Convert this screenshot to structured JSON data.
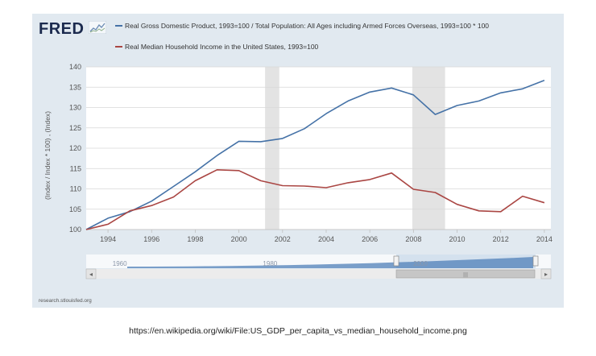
{
  "brand": {
    "logo_text": "FRED"
  },
  "chart_data": {
    "type": "line",
    "title": "",
    "xlabel": "",
    "ylabel": "(Index / Index * 100) , (Index)",
    "xlim": [
      1993,
      2014.3
    ],
    "ylim": [
      100,
      140
    ],
    "x_ticks": [
      1994,
      1996,
      1998,
      2000,
      2002,
      2004,
      2006,
      2008,
      2010,
      2012,
      2014
    ],
    "y_ticks": [
      100,
      105,
      110,
      115,
      120,
      125,
      130,
      135,
      140
    ],
    "grid": true,
    "recessions": [
      [
        2001.2,
        2001.85
      ],
      [
        2007.95,
        2009.45
      ]
    ],
    "series": [
      {
        "name": "Real Gross Domestic Product, 1993=100 / Total Population: All Ages including Armed Forces Overseas, 1993=100 * 100",
        "color": "#4572a7",
        "x": [
          1993,
          1994,
          1995,
          1996,
          1997,
          1998,
          1999,
          2000,
          2001,
          2002,
          2003,
          2004,
          2005,
          2006,
          2007,
          2008,
          2009,
          2010,
          2011,
          2012,
          2013,
          2014
        ],
        "values": [
          100,
          102.8,
          104.4,
          107,
          110.6,
          114.2,
          118.2,
          121.7,
          121.6,
          122.4,
          124.8,
          128.5,
          131.6,
          133.8,
          134.8,
          133.1,
          128.3,
          130.5,
          131.6,
          133.6,
          134.6,
          136.7
        ]
      },
      {
        "name": "Real Median Household Income in the United States, 1993=100",
        "color": "#aa4643",
        "x": [
          1993,
          1994,
          1995,
          1996,
          1997,
          1998,
          1999,
          2000,
          2001,
          2002,
          2003,
          2004,
          2005,
          2006,
          2007,
          2008,
          2009,
          2010,
          2011,
          2012,
          2013,
          2014
        ],
        "values": [
          100,
          101.3,
          104.6,
          105.9,
          108,
          112,
          114.7,
          114.5,
          112,
          110.8,
          110.7,
          110.3,
          111.5,
          112.3,
          113.9,
          109.9,
          109.1,
          106.2,
          104.6,
          104.4,
          108.2,
          106.6
        ]
      }
    ],
    "navigator": {
      "labels": [
        "1960",
        "1980",
        "2000"
      ],
      "range_values": [
        1961,
        2015
      ],
      "selected_range": [
        1993,
        2014.3
      ],
      "scrollbar_handle": "|||"
    }
  },
  "source_link": "research.stlouisfed.org",
  "caption": "https://en.wikipedia.org/wiki/File:US_GDP_per_capita_vs_median_household_income.png"
}
